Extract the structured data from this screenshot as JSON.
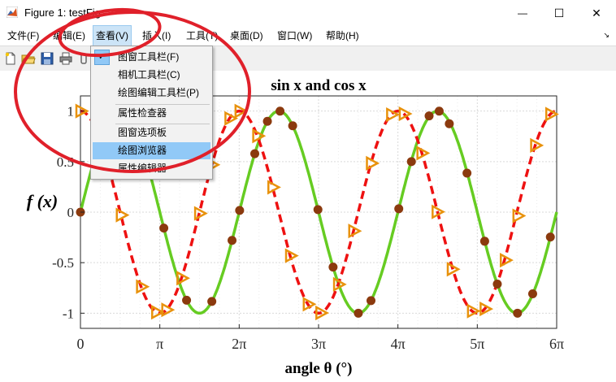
{
  "window": {
    "title": "Figure 1: testFig",
    "minimize_glyph": "—",
    "maximize_glyph": "☐",
    "close_glyph": "✕"
  },
  "menubar": {
    "items": [
      {
        "label": "文件(F)"
      },
      {
        "label": "编辑(E)"
      },
      {
        "label": "查看(V)"
      },
      {
        "label": "插入(I)"
      },
      {
        "label": "工具(T)"
      },
      {
        "label": "桌面(D)"
      },
      {
        "label": "窗口(W)"
      },
      {
        "label": "帮助(H)"
      }
    ],
    "active_index": 2,
    "expand_glyph": "↘"
  },
  "toolbar": {
    "icons": [
      "new-figure-icon",
      "open-folder-icon",
      "save-icon",
      "print-icon",
      "link-icon"
    ]
  },
  "view_menu": {
    "items": [
      {
        "label": "图窗工具栏(F)",
        "checked": true
      },
      {
        "label": "相机工具栏(C)",
        "checked": false
      },
      {
        "label": "绘图编辑工具栏(P)",
        "checked": false
      },
      {
        "label": "属性检查器",
        "checked": false
      },
      {
        "label": "图窗选项板",
        "checked": false
      },
      {
        "label": "绘图浏览器",
        "checked": false,
        "highlighted": true
      },
      {
        "label": "属性编辑器",
        "checked": false
      }
    ],
    "check_glyph": "✓"
  },
  "annotation": {
    "color": "#e0202a"
  },
  "chart_data": {
    "type": "line",
    "title": "sin x and cos x",
    "xlabel": "angle θ (°)",
    "ylabel": "f (x)",
    "xlim": [
      0,
      18.85
    ],
    "ylim": [
      -1.15,
      1.15
    ],
    "xticks": [
      0,
      3.1416,
      6.2832,
      9.4248,
      12.5664,
      15.708,
      18.8496
    ],
    "xtick_labels": [
      "0",
      "π",
      "2π",
      "3π",
      "4π",
      "5π",
      "6π"
    ],
    "yticks": [
      -1,
      -0.5,
      0,
      0.5,
      1
    ],
    "ytick_labels": [
      "-1",
      "-0.5",
      "0",
      "0.5",
      "1"
    ],
    "grid": true,
    "series": [
      {
        "function": "sin",
        "color": "#66cc22",
        "line": "solid",
        "marker": "circle",
        "marker_color": "#8b3a0e",
        "markers_x": [
          0.6,
          1.1,
          1.6,
          2.1,
          2.6,
          3.3,
          4.2,
          5.2,
          6.0,
          6.3
        ]
      },
      {
        "function": "cos",
        "color": "#ee1111",
        "line": "dashed",
        "marker": "triangle-right",
        "marker_color": "#e8920c",
        "markers_x": [
          0.0,
          1.6,
          3.3,
          5.0,
          6.3
        ]
      }
    ],
    "sin_samples": [
      [
        0.0,
        0.0
      ],
      [
        0.6,
        0.5646
      ],
      [
        1.1,
        0.8912
      ],
      [
        1.6,
        0.9996
      ],
      [
        2.1,
        0.8632
      ],
      [
        2.6,
        0.5155
      ],
      [
        3.3,
        -0.1577
      ],
      [
        4.2,
        -0.8716
      ],
      [
        5.2,
        -0.8835
      ],
      [
        6.0,
        -0.2794
      ],
      [
        6.3,
        0.0168
      ],
      [
        6.9,
        0.5784
      ],
      [
        7.4,
        0.8987
      ],
      [
        7.9,
        0.9989
      ],
      [
        8.4,
        0.8546
      ],
      [
        9.4,
        0.0248
      ],
      [
        10.0,
        -0.544
      ],
      [
        11.0,
        -1.0
      ],
      [
        11.5,
        -0.8755
      ],
      [
        12.6,
        0.0336
      ],
      [
        13.1,
        0.5
      ],
      [
        13.8,
        0.9516
      ],
      [
        14.2,
        0.9992
      ],
      [
        14.6,
        0.8745
      ],
      [
        15.3,
        0.3859
      ],
      [
        16.0,
        -0.2879
      ],
      [
        16.5,
        -0.7118
      ],
      [
        17.3,
        -0.9998
      ],
      [
        17.9,
        -0.8079
      ],
      [
        18.6,
        -0.2466
      ]
    ],
    "cos_samples": [
      [
        0.0,
        1.0
      ],
      [
        1.6,
        -0.0292
      ],
      [
        2.4,
        -0.7374
      ],
      [
        3.0,
        -0.99
      ],
      [
        3.4,
        -0.9668
      ],
      [
        4.0,
        -0.6536
      ],
      [
        4.7,
        -0.0124
      ],
      [
        5.2,
        0.4685
      ],
      [
        5.9,
        0.9275
      ],
      [
        6.3,
        0.9999
      ],
      [
        7.0,
        0.7539
      ],
      [
        7.6,
        0.2459
      ],
      [
        8.3,
        -0.4314
      ],
      [
        9.0,
        -0.9111
      ],
      [
        9.5,
        -0.9972
      ],
      [
        10.2,
        -0.7149
      ],
      [
        10.8,
        -0.1865
      ],
      [
        11.5,
        0.4833
      ],
      [
        12.3,
        0.9647
      ],
      [
        12.8,
        0.9728
      ],
      [
        13.5,
        0.5842
      ],
      [
        14.1,
        0.0027
      ],
      [
        14.7,
        -0.5649
      ],
      [
        15.5,
        -0.9785
      ],
      [
        16.0,
        -0.9577
      ],
      [
        16.8,
        -0.4755
      ],
      [
        17.3,
        -0.0366
      ],
      [
        18.0,
        0.6603
      ],
      [
        18.6,
        0.9691
      ]
    ]
  }
}
